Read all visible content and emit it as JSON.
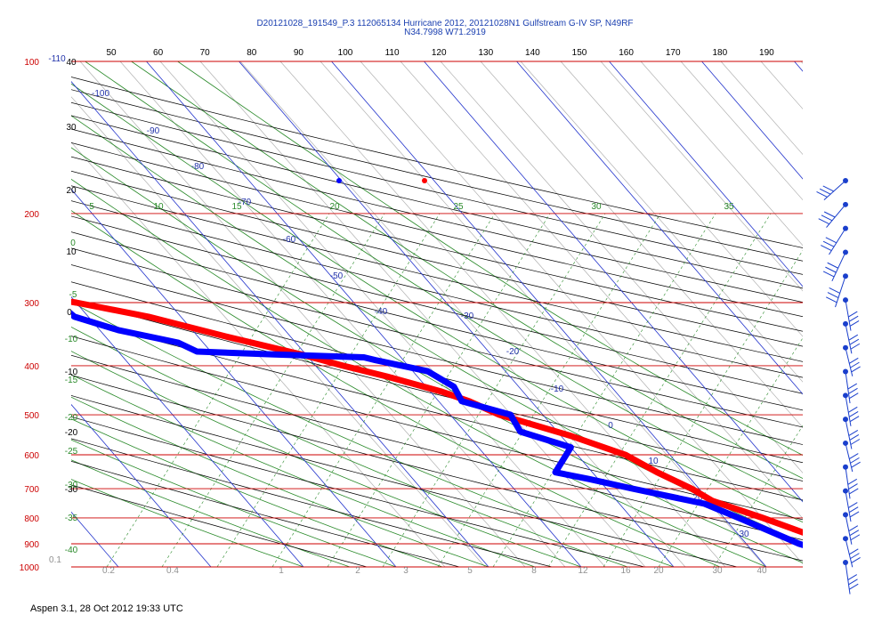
{
  "header": {
    "line1": "D20121028_191549_P.3 112065134 Hurricane 2012, 20121028N1 Gulfstream G-IV SP, N49RF",
    "line2": "N34.7998 W71.2919"
  },
  "footer": "Aspen 3.1, 28 Oct 2012  19:33 UTC",
  "chart_data": {
    "type": "line",
    "subtype": "skew-t log-p sounding",
    "x_axis": {
      "top_ticks": [
        50,
        60,
        70,
        80,
        90,
        100,
        110,
        120,
        130,
        140,
        150,
        160,
        170,
        180,
        190
      ]
    },
    "y_axis": {
      "unit": "hPa",
      "scale": "log",
      "ticks": [
        100,
        200,
        300,
        400,
        500,
        600,
        700,
        800,
        900,
        1000
      ],
      "range": [
        100,
        1000
      ]
    },
    "temperature_labels": [
      "-110",
      "-100",
      "-90",
      "-80",
      "-70",
      "-60",
      "-50",
      "-40",
      "-30",
      "-20",
      "-10",
      "0",
      "10",
      "20",
      "30"
    ],
    "left_labels": [
      "40",
      "30",
      "20",
      "10",
      "0",
      "-10",
      "-20",
      "-30"
    ],
    "dry_adiabat_labels": [
      "5",
      "10",
      "15",
      "20",
      "25",
      "30",
      "35"
    ],
    "moist_adiabat_labels": [
      "0",
      "-5",
      "-10",
      "-15",
      "-20",
      "-25",
      "-30",
      "-35",
      "-40"
    ],
    "mixing_ratio_labels": [
      "0.1",
      "0.2",
      "0.4",
      "1",
      "2",
      "3",
      "5",
      "8",
      "12",
      "16",
      "20",
      "30",
      "40"
    ],
    "series": [
      {
        "color": "#ff0000",
        "x": [
          -52.5,
          -52,
          -51.5,
          -49.5,
          -47.5,
          -44.5,
          -40,
          -33.5,
          -27,
          -20.5,
          -17,
          -13.3,
          -8.8,
          -6.7,
          -4.7,
          1,
          5.2,
          7,
          9.2,
          10.3,
          14.2,
          19.5,
          22.6
        ],
        "y": [
          197,
          210,
          230,
          250,
          270,
          290,
          300,
          320,
          350,
          380,
          400,
          420,
          450,
          470,
          500,
          550,
          600,
          650,
          700,
          740,
          800,
          900,
          1000
        ]
      },
      {
        "color": "#0000ff",
        "x": [
          -54,
          -60,
          -62.5,
          -58,
          -52,
          -45.5,
          -42,
          -41.5,
          -38,
          -32.7,
          -31.5,
          -23.4,
          -14,
          -13,
          -8.4,
          -7,
          -7.5,
          -3.5,
          -4,
          0,
          -4,
          -1,
          2.8,
          9.2,
          11.6,
          15.7,
          20.7,
          22.8
        ],
        "y": [
          210,
          230,
          235,
          250,
          265,
          280,
          300,
          320,
          340,
          360,
          375,
          380,
          385,
          390,
          410,
          440,
          470,
          500,
          540,
          580,
          650,
          670,
          700,
          750,
          800,
          900,
          980,
          1000
        ]
      }
    ],
    "wind_barbs": {
      "location": "right",
      "count": 17
    }
  }
}
